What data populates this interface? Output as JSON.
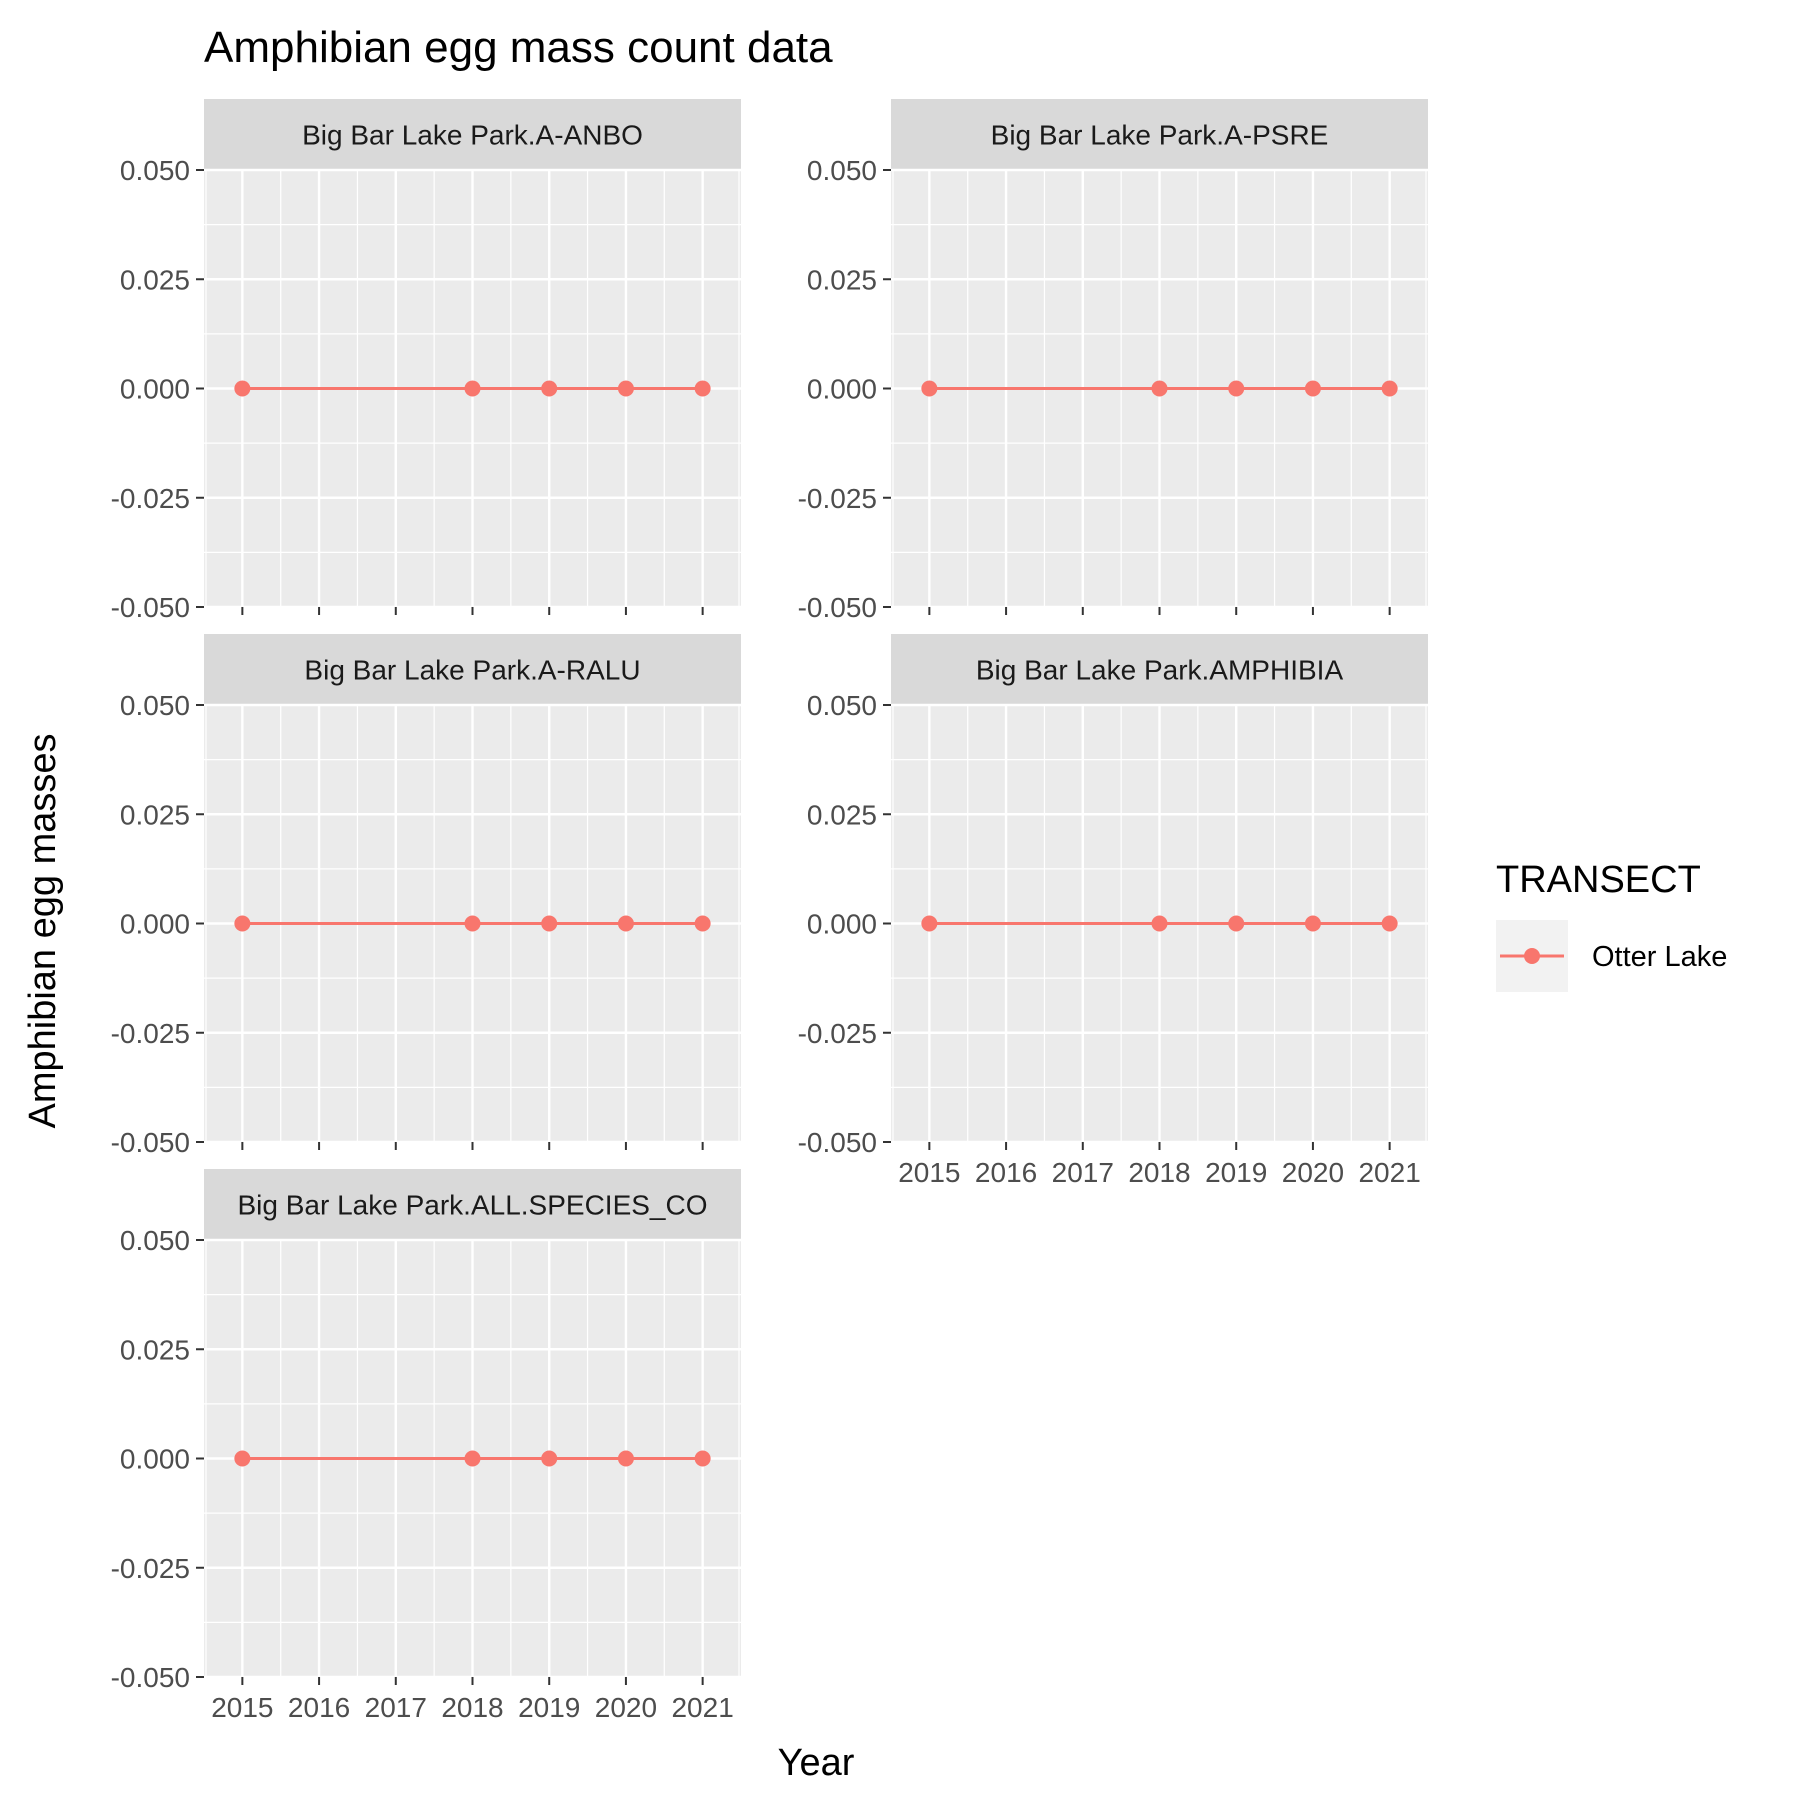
{
  "chart_data": {
    "type": "line",
    "title": "Amphibian egg mass count data",
    "xlabel": "Year",
    "ylabel": "Amphibian egg masses",
    "xlim": [
      2014.5,
      2021.5
    ],
    "ylim": [
      -0.05,
      0.05
    ],
    "x_ticks": [
      "2015",
      "2016",
      "2017",
      "2018",
      "2019",
      "2020",
      "2021"
    ],
    "y_ticks": [
      "-0.050",
      "-0.025",
      "0.000",
      "0.025",
      "0.050"
    ],
    "grid": true,
    "legend": {
      "title": "TRANSECT",
      "placement": "right",
      "entries": [
        {
          "name": "Otter Lake",
          "color": "#F8766D"
        }
      ]
    },
    "panels": [
      {
        "label": "Big Bar Lake Park.A-ANBO",
        "series": [
          {
            "name": "Otter Lake",
            "x": [
              2015,
              2018,
              2019,
              2020,
              2021
            ],
            "y": [
              0,
              0,
              0,
              0,
              0
            ]
          }
        ]
      },
      {
        "label": "Big Bar Lake Park.A-PSRE",
        "series": [
          {
            "name": "Otter Lake",
            "x": [
              2015,
              2018,
              2019,
              2020,
              2021
            ],
            "y": [
              0,
              0,
              0,
              0,
              0
            ]
          }
        ]
      },
      {
        "label": "Big Bar Lake Park.A-RALU",
        "series": [
          {
            "name": "Otter Lake",
            "x": [
              2015,
              2018,
              2019,
              2020,
              2021
            ],
            "y": [
              0,
              0,
              0,
              0,
              0
            ]
          }
        ]
      },
      {
        "label": "Big Bar Lake Park.AMPHIBIA",
        "series": [
          {
            "name": "Otter Lake",
            "x": [
              2015,
              2018,
              2019,
              2020,
              2021
            ],
            "y": [
              0,
              0,
              0,
              0,
              0
            ]
          }
        ]
      },
      {
        "label": "Big Bar Lake Park.ALL.SPECIES_CO",
        "series": [
          {
            "name": "Otter Lake",
            "x": [
              2015,
              2018,
              2019,
              2020,
              2021
            ],
            "y": [
              0,
              0,
              0,
              0,
              0
            ]
          }
        ]
      }
    ]
  }
}
